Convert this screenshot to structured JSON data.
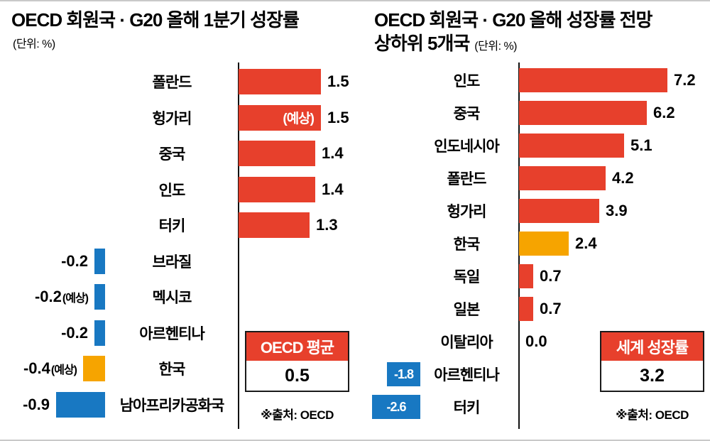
{
  "colors": {
    "red": "#e7402c",
    "blue": "#1878c2",
    "orange": "#f6a400",
    "text": "#000000",
    "rule": "#c9c9c9"
  },
  "chart_data": [
    {
      "type": "bar",
      "orientation": "horizontal",
      "title": "OECD 회원국 · G20 올해 1분기 성장률",
      "unit": "(단위: %)",
      "value_unit": "%",
      "value_range": [
        -0.9,
        1.5
      ],
      "categories": [
        "폴란드",
        "헝가리",
        "중국",
        "인도",
        "터키",
        "브라질",
        "멕시코",
        "아르헨티나",
        "한국",
        "남아프리카공화국"
      ],
      "values": [
        1.5,
        1.5,
        1.4,
        1.4,
        1.3,
        -0.2,
        -0.2,
        -0.2,
        -0.4,
        -0.9
      ],
      "rows": [
        {
          "label": "폴란드",
          "value": 1.5,
          "value_label": "1.5",
          "color": "red"
        },
        {
          "label": "헝가리",
          "value": 1.5,
          "value_label": "1.5",
          "color": "red",
          "bar_text": "(예상)"
        },
        {
          "label": "중국",
          "value": 1.4,
          "value_label": "1.4",
          "color": "red"
        },
        {
          "label": "인도",
          "value": 1.4,
          "value_label": "1.4",
          "color": "red"
        },
        {
          "label": "터키",
          "value": 1.3,
          "value_label": "1.3",
          "color": "red"
        },
        {
          "label": "브라질",
          "value": -0.2,
          "value_label": "-0.2",
          "color": "blue"
        },
        {
          "label": "멕시코",
          "value": -0.2,
          "value_label": "-0.2",
          "color": "blue",
          "suffix": "(예상)"
        },
        {
          "label": "아르헨티나",
          "value": -0.2,
          "value_label": "-0.2",
          "color": "blue"
        },
        {
          "label": "한국",
          "value": -0.4,
          "value_label": "-0.4",
          "color": "orange",
          "suffix": "(예상)"
        },
        {
          "label": "남아프리카공화국",
          "value": -0.9,
          "value_label": "-0.9",
          "color": "blue"
        }
      ],
      "callout": {
        "title": "OECD 평균",
        "value": "0.5"
      },
      "source": "※출처: OECD"
    },
    {
      "type": "bar",
      "orientation": "horizontal",
      "title": "OECD 회원국 · G20 올해 성장률 전망",
      "title_line2": "상하위 5개국",
      "unit": "(단위: %)",
      "value_unit": "%",
      "value_range": [
        -2.6,
        7.2
      ],
      "categories": [
        "인도",
        "중국",
        "인도네시아",
        "폴란드",
        "헝가리",
        "한국",
        "독일",
        "일본",
        "이탈리아",
        "아르헨티나",
        "터키"
      ],
      "values": [
        7.2,
        6.2,
        5.1,
        4.2,
        3.9,
        2.4,
        0.7,
        0.7,
        0.0,
        -1.8,
        -2.6
      ],
      "rows": [
        {
          "label": "인도",
          "value": 7.2,
          "value_label": "7.2",
          "color": "red"
        },
        {
          "label": "중국",
          "value": 6.2,
          "value_label": "6.2",
          "color": "red"
        },
        {
          "label": "인도네시아",
          "value": 5.1,
          "value_label": "5.1",
          "color": "red"
        },
        {
          "label": "폴란드",
          "value": 4.2,
          "value_label": "4.2",
          "color": "red"
        },
        {
          "label": "헝가리",
          "value": 3.9,
          "value_label": "3.9",
          "color": "red"
        },
        {
          "label": "한국",
          "value": 2.4,
          "value_label": "2.4",
          "color": "orange"
        },
        {
          "label": "독일",
          "value": 0.7,
          "value_label": "0.7",
          "color": "red"
        },
        {
          "label": "일본",
          "value": 0.7,
          "value_label": "0.7",
          "color": "red"
        },
        {
          "label": "이탈리아",
          "value": 0.0,
          "value_label": "0.0",
          "color": "red"
        },
        {
          "label": "아르헨티나",
          "value": -1.8,
          "value_label": "",
          "color": "blue",
          "bar_text": "-1.8"
        },
        {
          "label": "터키",
          "value": -2.6,
          "value_label": "",
          "color": "blue",
          "bar_text": "-2.6"
        }
      ],
      "callout": {
        "title": "세계 성장률",
        "value": "3.2"
      },
      "source": "※출처: OECD"
    }
  ]
}
